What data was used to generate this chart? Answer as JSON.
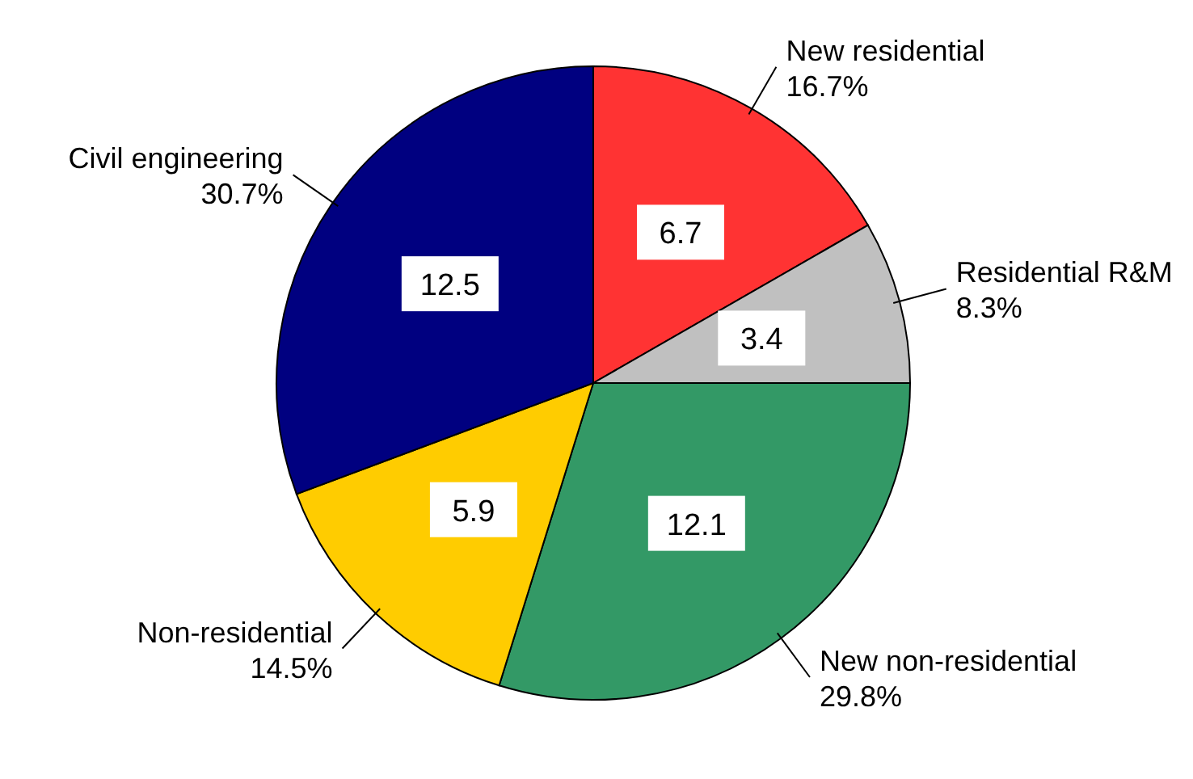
{
  "chart_data": {
    "type": "pie",
    "categories": [
      "New residential",
      "Residential R&M",
      "New non-residential",
      "Non-residential",
      "Civil engineering"
    ],
    "values": [
      16.7,
      8.3,
      29.8,
      14.5,
      30.7
    ],
    "colors": [
      "#ff3333",
      "#c0c0c0",
      "#339966",
      "#ffcc00",
      "#000080"
    ],
    "value_labels": [
      "16.7%",
      "8.3%",
      "29.8%",
      "14.5%",
      "30.7%"
    ],
    "annotations": [
      "6.7",
      "3.4",
      "12.1",
      "5.9",
      "12.5"
    ]
  }
}
